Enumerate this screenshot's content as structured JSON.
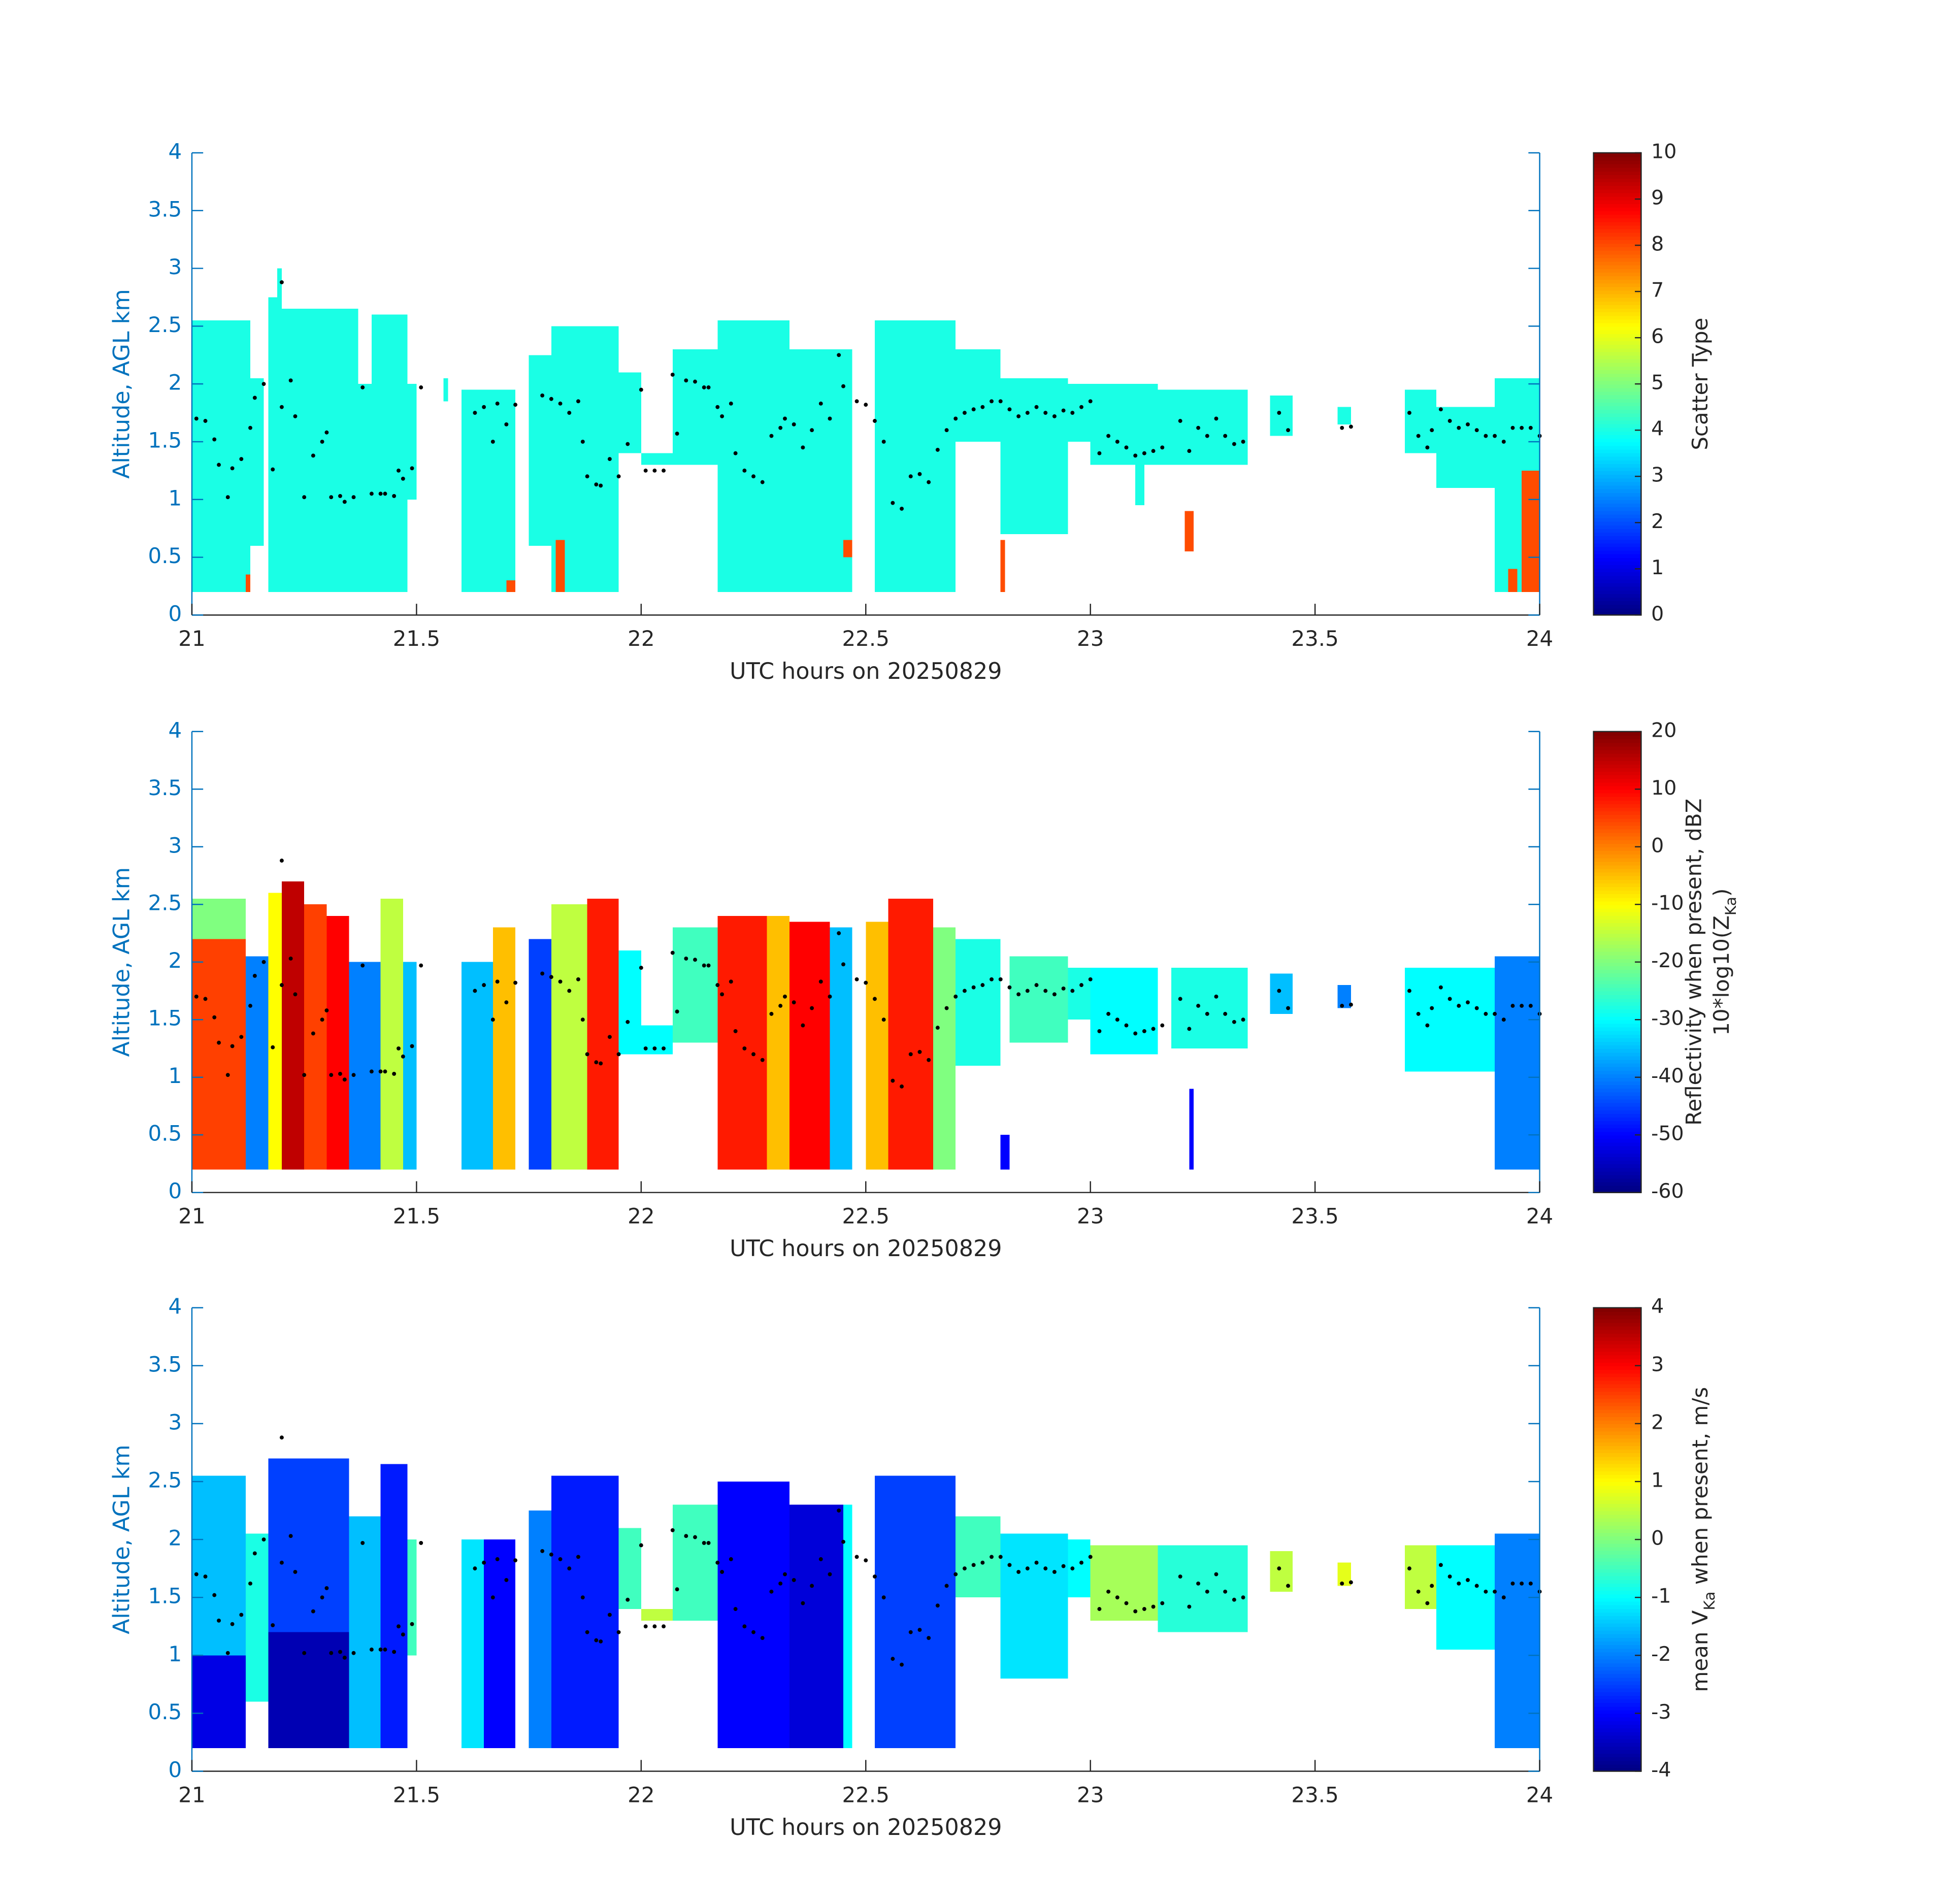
{
  "chart_data": [
    {
      "type": "heatmap",
      "xlabel": "UTC hours on 20250829",
      "ylabel": "Altitude, AGL km",
      "xlim": [
        21,
        24
      ],
      "ylim": [
        0,
        4
      ],
      "xticks": [
        21,
        21.5,
        22,
        22.5,
        23,
        23.5,
        24
      ],
      "yticks": [
        0,
        0.5,
        1,
        1.5,
        2,
        2.5,
        3,
        3.5,
        4
      ],
      "colormap": "jet",
      "clim": [
        0,
        10
      ],
      "cticks": [
        0,
        1,
        2,
        3,
        4,
        5,
        6,
        7,
        8,
        9,
        10
      ],
      "colorbar_label": [
        [
          {
            "text": "Scatter Type"
          }
        ]
      ],
      "cells": [
        [
          21.0,
          21.13,
          0.2,
          2.55,
          4
        ],
        [
          21.13,
          21.16,
          0.6,
          2.05,
          4
        ],
        [
          21.17,
          21.2,
          0.2,
          2.75,
          4
        ],
        [
          21.19,
          21.2,
          2.75,
          3.0,
          4
        ],
        [
          21.2,
          21.37,
          0.2,
          2.65,
          4
        ],
        [
          21.37,
          21.4,
          0.2,
          2.0,
          4
        ],
        [
          21.4,
          21.48,
          0.2,
          2.6,
          4
        ],
        [
          21.48,
          21.5,
          1.0,
          2.0,
          4
        ],
        [
          21.56,
          21.57,
          1.85,
          2.05,
          4
        ],
        [
          21.6,
          21.72,
          0.2,
          1.95,
          4
        ],
        [
          21.75,
          21.8,
          0.6,
          2.25,
          4
        ],
        [
          21.8,
          21.95,
          0.2,
          2.5,
          4
        ],
        [
          21.95,
          22.0,
          1.4,
          2.1,
          4
        ],
        [
          22.0,
          22.07,
          1.3,
          1.4,
          4
        ],
        [
          22.07,
          22.17,
          1.3,
          2.3,
          4
        ],
        [
          22.17,
          22.33,
          0.2,
          2.55,
          4
        ],
        [
          22.33,
          22.47,
          0.2,
          2.3,
          4
        ],
        [
          22.52,
          22.7,
          0.2,
          2.55,
          4
        ],
        [
          22.7,
          22.8,
          1.5,
          2.3,
          4
        ],
        [
          22.8,
          22.95,
          0.7,
          2.05,
          4
        ],
        [
          22.95,
          23.0,
          1.5,
          2.0,
          4
        ],
        [
          23.0,
          23.15,
          1.3,
          2.0,
          4
        ],
        [
          23.1,
          23.12,
          0.95,
          1.3,
          4
        ],
        [
          23.15,
          23.35,
          1.3,
          1.95,
          4
        ],
        [
          23.4,
          23.45,
          1.55,
          1.9,
          4
        ],
        [
          23.55,
          23.58,
          1.65,
          1.8,
          4
        ],
        [
          23.7,
          23.77,
          1.4,
          1.95,
          4
        ],
        [
          23.77,
          23.9,
          1.1,
          1.8,
          4
        ],
        [
          23.9,
          24.0,
          0.2,
          2.05,
          4
        ],
        [
          21.12,
          21.13,
          0.2,
          0.35,
          8
        ],
        [
          21.7,
          21.72,
          0.2,
          0.3,
          8
        ],
        [
          21.81,
          21.83,
          0.2,
          0.65,
          8
        ],
        [
          22.45,
          22.47,
          0.5,
          0.65,
          8
        ],
        [
          22.8,
          22.81,
          0.2,
          0.65,
          8
        ],
        [
          23.21,
          23.23,
          0.55,
          0.9,
          8
        ],
        [
          23.93,
          23.95,
          0.2,
          0.4,
          8
        ],
        [
          23.96,
          24.0,
          0.2,
          1.25,
          8
        ]
      ]
    },
    {
      "type": "heatmap",
      "xlabel": "UTC hours on 20250829",
      "ylabel": "Altitude, AGL km",
      "xlim": [
        21,
        24
      ],
      "ylim": [
        0,
        4
      ],
      "xticks": [
        21,
        21.5,
        22,
        22.5,
        23,
        23.5,
        24
      ],
      "yticks": [
        0,
        0.5,
        1,
        1.5,
        2,
        2.5,
        3,
        3.5,
        4
      ],
      "colormap": "jet",
      "clim": [
        -60,
        20
      ],
      "cticks": [
        -60,
        -50,
        -40,
        -30,
        -20,
        -10,
        0,
        10,
        20
      ],
      "colorbar_label": [
        [
          {
            "text": "Reflectivity when present, dBZ"
          }
        ],
        [
          {
            "text": "10*log10(Z"
          },
          {
            "text": "Ka",
            "sub": true
          },
          {
            "text": ")"
          }
        ]
      ],
      "cells": [
        [
          21.0,
          21.12,
          0.2,
          2.2,
          5
        ],
        [
          21.0,
          21.12,
          2.2,
          2.55,
          -20
        ],
        [
          21.12,
          21.17,
          0.2,
          2.05,
          -40
        ],
        [
          21.17,
          21.2,
          0.2,
          2.6,
          -10
        ],
        [
          21.2,
          21.25,
          0.2,
          2.7,
          15
        ],
        [
          21.25,
          21.3,
          0.2,
          2.5,
          5
        ],
        [
          21.3,
          21.35,
          0.2,
          2.4,
          10
        ],
        [
          21.35,
          21.42,
          0.2,
          2.0,
          -40
        ],
        [
          21.42,
          21.47,
          0.2,
          2.55,
          -15
        ],
        [
          21.47,
          21.5,
          0.2,
          2.0,
          -35
        ],
        [
          21.6,
          21.67,
          0.2,
          2.0,
          -35
        ],
        [
          21.67,
          21.72,
          0.2,
          2.3,
          -5
        ],
        [
          21.75,
          21.8,
          0.2,
          2.2,
          -45
        ],
        [
          21.8,
          21.88,
          0.2,
          2.5,
          -15
        ],
        [
          21.88,
          21.95,
          0.2,
          2.55,
          8
        ],
        [
          21.95,
          22.0,
          1.2,
          2.1,
          -30
        ],
        [
          22.0,
          22.07,
          1.2,
          1.45,
          -30
        ],
        [
          22.07,
          22.17,
          1.3,
          2.3,
          -25
        ],
        [
          22.17,
          22.28,
          0.2,
          2.4,
          8
        ],
        [
          22.28,
          22.33,
          0.2,
          2.4,
          -5
        ],
        [
          22.33,
          22.42,
          0.2,
          2.35,
          10
        ],
        [
          22.42,
          22.47,
          0.2,
          2.3,
          -35
        ],
        [
          22.5,
          22.55,
          0.2,
          2.35,
          -5
        ],
        [
          22.55,
          22.65,
          0.2,
          2.55,
          8
        ],
        [
          22.65,
          22.7,
          0.2,
          2.3,
          -20
        ],
        [
          22.7,
          22.8,
          1.1,
          2.2,
          -28
        ],
        [
          22.8,
          22.82,
          0.2,
          0.5,
          -50
        ],
        [
          22.82,
          22.95,
          1.3,
          2.05,
          -25
        ],
        [
          22.95,
          23.0,
          1.5,
          1.95,
          -28
        ],
        [
          23.0,
          23.15,
          1.2,
          1.95,
          -30
        ],
        [
          23.18,
          23.35,
          1.25,
          1.95,
          -28
        ],
        [
          23.22,
          23.23,
          0.2,
          0.9,
          -50
        ],
        [
          23.4,
          23.45,
          1.55,
          1.9,
          -35
        ],
        [
          23.55,
          23.58,
          1.6,
          1.8,
          -40
        ],
        [
          23.7,
          23.9,
          1.05,
          1.95,
          -30
        ],
        [
          23.9,
          24.0,
          0.2,
          2.05,
          -40
        ]
      ]
    },
    {
      "type": "heatmap",
      "xlabel": "UTC hours on 20250829",
      "ylabel": "Altitude, AGL km",
      "xlim": [
        21,
        24
      ],
      "ylim": [
        0,
        4
      ],
      "xticks": [
        21,
        21.5,
        22,
        22.5,
        23,
        23.5,
        24
      ],
      "yticks": [
        0,
        0.5,
        1,
        1.5,
        2,
        2.5,
        3,
        3.5,
        4
      ],
      "colormap": "jet",
      "clim": [
        -4,
        4
      ],
      "cticks": [
        -4,
        -3,
        -2,
        -1,
        0,
        1,
        2,
        3,
        4
      ],
      "colorbar_label": [
        [
          {
            "text": "mean V"
          },
          {
            "text": "Ka",
            "sub": true
          },
          {
            "text": " when present, m/s"
          }
        ]
      ],
      "cells": [
        [
          21.0,
          21.12,
          0.2,
          1.0,
          -3.2
        ],
        [
          21.0,
          21.12,
          1.0,
          2.55,
          -1.5
        ],
        [
          21.12,
          21.17,
          0.6,
          2.05,
          -0.8
        ],
        [
          21.17,
          21.35,
          0.2,
          1.2,
          -3.6
        ],
        [
          21.17,
          21.35,
          1.2,
          2.7,
          -2.5
        ],
        [
          21.35,
          21.42,
          0.2,
          2.2,
          -1.5
        ],
        [
          21.42,
          21.48,
          0.2,
          2.65,
          -2.8
        ],
        [
          21.48,
          21.5,
          1.0,
          2.0,
          -0.5
        ],
        [
          21.6,
          21.65,
          0.2,
          2.0,
          -1.2
        ],
        [
          21.65,
          21.72,
          0.2,
          2.0,
          -3
        ],
        [
          21.75,
          21.8,
          0.2,
          2.25,
          -2
        ],
        [
          21.8,
          21.95,
          0.2,
          2.55,
          -2.8
        ],
        [
          21.95,
          22.0,
          1.4,
          2.1,
          -0.5
        ],
        [
          22.0,
          22.07,
          1.3,
          1.4,
          0.5
        ],
        [
          22.07,
          22.17,
          1.3,
          2.3,
          -0.5
        ],
        [
          22.17,
          22.33,
          0.2,
          2.5,
          -3
        ],
        [
          22.33,
          22.45,
          0.2,
          2.3,
          -3.3
        ],
        [
          22.45,
          22.47,
          0.2,
          2.3,
          -1
        ],
        [
          22.52,
          22.7,
          0.2,
          2.55,
          -2.5
        ],
        [
          22.7,
          22.8,
          1.5,
          2.2,
          -0.5
        ],
        [
          22.8,
          22.95,
          0.8,
          2.05,
          -1.2
        ],
        [
          22.95,
          23.0,
          1.5,
          2.0,
          -1
        ],
        [
          23.0,
          23.15,
          1.3,
          1.95,
          0.3
        ],
        [
          23.15,
          23.35,
          1.2,
          1.95,
          -0.7
        ],
        [
          23.4,
          23.45,
          1.55,
          1.9,
          0.5
        ],
        [
          23.55,
          23.58,
          1.6,
          1.8,
          0.8
        ],
        [
          23.7,
          23.77,
          1.4,
          1.95,
          0.5
        ],
        [
          23.77,
          23.9,
          1.05,
          1.95,
          -1
        ],
        [
          23.9,
          24.0,
          0.2,
          2.05,
          -2
        ]
      ]
    }
  ],
  "overlay": {
    "type": "scatter",
    "color": "#000000",
    "x": [
      21.01,
      21.03,
      21.05,
      21.06,
      21.08,
      21.09,
      21.11,
      21.13,
      21.14,
      21.16,
      21.18,
      21.2,
      21.2,
      21.22,
      21.23,
      21.25,
      21.27,
      21.29,
      21.3,
      21.31,
      21.33,
      21.34,
      21.36,
      21.38,
      21.4,
      21.42,
      21.43,
      21.45,
      21.46,
      21.47,
      21.49,
      21.51,
      21.63,
      21.65,
      21.67,
      21.68,
      21.7,
      21.72,
      21.78,
      21.8,
      21.82,
      21.84,
      21.86,
      21.87,
      21.88,
      21.9,
      21.91,
      21.93,
      21.95,
      21.97,
      22.0,
      22.01,
      22.03,
      22.05,
      22.07,
      22.08,
      22.1,
      22.12,
      22.14,
      22.15,
      22.17,
      22.18,
      22.2,
      22.21,
      22.23,
      22.25,
      22.27,
      22.29,
      22.31,
      22.32,
      22.34,
      22.36,
      22.38,
      22.4,
      22.42,
      22.44,
      22.45,
      22.48,
      22.5,
      22.52,
      22.54,
      22.56,
      22.58,
      22.6,
      22.62,
      22.64,
      22.66,
      22.68,
      22.7,
      22.72,
      22.74,
      22.76,
      22.78,
      22.8,
      22.82,
      22.84,
      22.86,
      22.88,
      22.9,
      22.92,
      22.94,
      22.96,
      22.98,
      23.0,
      23.02,
      23.04,
      23.06,
      23.08,
      23.1,
      23.12,
      23.14,
      23.16,
      23.2,
      23.22,
      23.24,
      23.26,
      23.28,
      23.3,
      23.32,
      23.34,
      23.42,
      23.44,
      23.56,
      23.58,
      23.71,
      23.73,
      23.75,
      23.76,
      23.78,
      23.8,
      23.82,
      23.84,
      23.86,
      23.88,
      23.9,
      23.92,
      23.94,
      23.96,
      23.98,
      24.0
    ],
    "y": [
      1.7,
      1.68,
      1.52,
      1.3,
      1.02,
      1.27,
      1.35,
      1.62,
      1.88,
      2.0,
      1.26,
      2.88,
      1.8,
      2.03,
      1.72,
      1.02,
      1.38,
      1.5,
      1.58,
      1.02,
      1.03,
      0.98,
      1.02,
      1.97,
      1.05,
      1.05,
      1.05,
      1.03,
      1.25,
      1.18,
      1.27,
      1.97,
      1.75,
      1.8,
      1.5,
      1.83,
      1.65,
      1.82,
      1.9,
      1.87,
      1.83,
      1.75,
      1.85,
      1.5,
      1.2,
      1.13,
      1.12,
      1.35,
      1.2,
      1.48,
      1.95,
      1.25,
      1.25,
      1.25,
      2.08,
      1.57,
      2.03,
      2.02,
      1.97,
      1.97,
      1.8,
      1.72,
      1.83,
      1.4,
      1.25,
      1.2,
      1.15,
      1.55,
      1.62,
      1.7,
      1.65,
      1.45,
      1.6,
      1.83,
      1.7,
      2.25,
      1.98,
      1.85,
      1.82,
      1.68,
      1.5,
      0.97,
      0.92,
      1.2,
      1.22,
      1.15,
      1.43,
      1.6,
      1.7,
      1.75,
      1.78,
      1.8,
      1.85,
      1.85,
      1.78,
      1.72,
      1.75,
      1.8,
      1.75,
      1.72,
      1.77,
      1.75,
      1.8,
      1.85,
      1.4,
      1.55,
      1.5,
      1.45,
      1.38,
      1.4,
      1.42,
      1.45,
      1.68,
      1.42,
      1.62,
      1.55,
      1.7,
      1.55,
      1.48,
      1.5,
      1.75,
      1.6,
      1.62,
      1.63,
      1.75,
      1.55,
      1.45,
      1.6,
      1.78,
      1.68,
      1.62,
      1.65,
      1.6,
      1.55,
      1.55,
      1.5,
      1.62,
      1.62,
      1.62,
      1.55
    ]
  }
}
